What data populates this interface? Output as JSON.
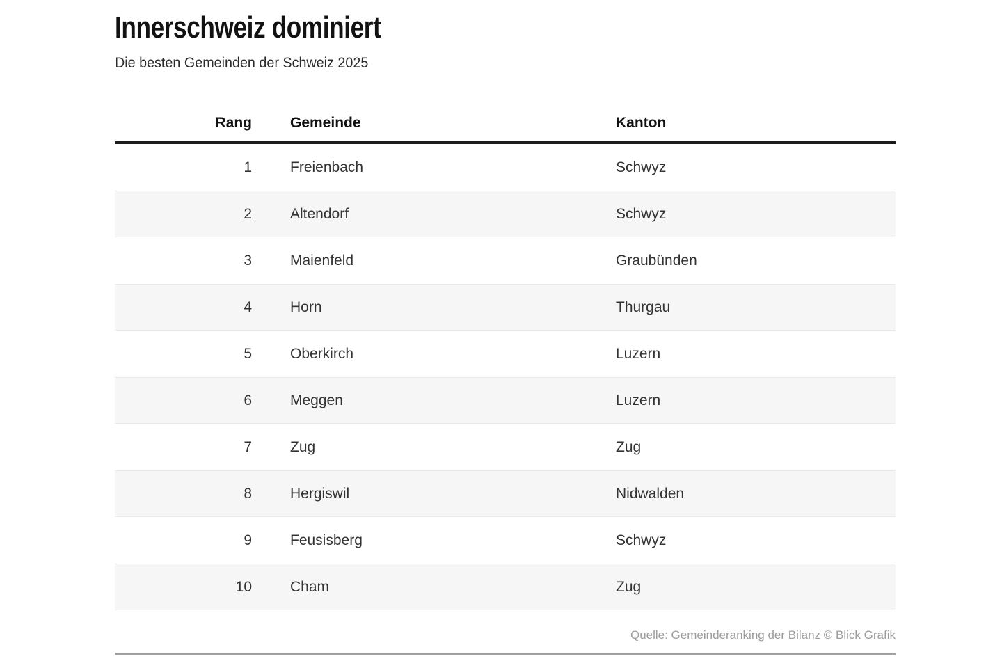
{
  "header": {
    "title": "Innerschweiz dominiert",
    "subtitle": "Die besten Gemeinden der Schweiz 2025"
  },
  "chart_data": {
    "type": "table",
    "title": "Innerschweiz dominiert",
    "subtitle": "Die besten Gemeinden der Schweiz 2025",
    "columns": [
      "Rang",
      "Gemeinde",
      "Kanton"
    ],
    "rows": [
      [
        1,
        "Freienbach",
        "Schwyz"
      ],
      [
        2,
        "Altendorf",
        "Schwyz"
      ],
      [
        3,
        "Maienfeld",
        "Graubünden"
      ],
      [
        4,
        "Horn",
        "Thurgau"
      ],
      [
        5,
        "Oberkirch",
        "Luzern"
      ],
      [
        6,
        "Meggen",
        "Luzern"
      ],
      [
        7,
        "Zug",
        "Zug"
      ],
      [
        8,
        "Hergiswil",
        "Nidwalden"
      ],
      [
        9,
        "Feusisberg",
        "Schwyz"
      ],
      [
        10,
        "Cham",
        "Zug"
      ]
    ],
    "layout": {
      "zebra_striping": true,
      "striped_rows": "even ranks",
      "header_rule_color": "#1c1c1c",
      "stripe_color": "#f6f6f6",
      "bottom_rule_color": "#a0a0a0"
    },
    "source": "Quelle: Gemeinderanking der Bilanz © Blick Grafik"
  },
  "footer": {
    "source": "Quelle: Gemeinderanking der Bilanz © Blick Grafik"
  },
  "colors": {
    "background": "#ffffff",
    "title_text": "#121212",
    "body_text": "#333333",
    "muted_text": "#9c9c9c",
    "stripe": "#f6f6f6",
    "header_rule": "#1c1c1c",
    "bottom_rule": "#a0a0a0"
  }
}
